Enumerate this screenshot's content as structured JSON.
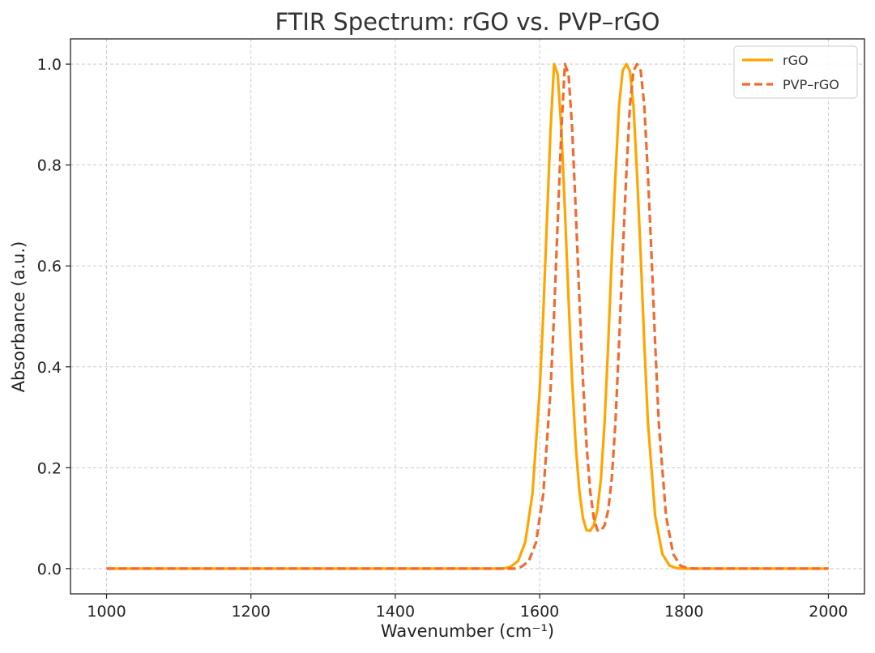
{
  "chart_data": {
    "type": "line",
    "title": "FTIR Spectrum: rGO vs. PVP–rGO",
    "xlabel": "Wavenumber (cm⁻¹)",
    "ylabel": "Absorbance (a.u.)",
    "xlim": [
      950,
      2050
    ],
    "ylim": [
      -0.05,
      1.05
    ],
    "xticks": [
      1000,
      1200,
      1400,
      1600,
      1800,
      2000
    ],
    "yticks": [
      0.0,
      0.2,
      0.4,
      0.6,
      0.8,
      1.0
    ],
    "xtick_labels": [
      "1000",
      "1200",
      "1400",
      "1600",
      "1800",
      "2000"
    ],
    "ytick_labels": [
      "0.0",
      "0.2",
      "0.4",
      "0.6",
      "0.8",
      "1.0"
    ],
    "grid": true,
    "legend_position": "top-right",
    "series": [
      {
        "name": "rGO",
        "color": "#FFA500",
        "style": "solid",
        "x": [
          1000,
          1200,
          1400,
          1500,
          1550,
          1560,
          1570,
          1580,
          1590,
          1600,
          1605,
          1610,
          1615,
          1620,
          1625,
          1630,
          1635,
          1640,
          1645,
          1650,
          1655,
          1660,
          1665,
          1670,
          1675,
          1680,
          1685,
          1690,
          1695,
          1700,
          1705,
          1710,
          1715,
          1720,
          1725,
          1730,
          1735,
          1740,
          1745,
          1750,
          1760,
          1770,
          1780,
          1790,
          1800,
          1850,
          1900,
          2000
        ],
        "y": [
          0,
          0,
          0,
          0,
          0,
          0.004,
          0.015,
          0.052,
          0.148,
          0.352,
          0.505,
          0.687,
          0.867,
          1.0,
          0.98,
          0.873,
          0.71,
          0.535,
          0.373,
          0.244,
          0.154,
          0.1,
          0.076,
          0.075,
          0.086,
          0.116,
          0.18,
          0.29,
          0.446,
          0.621,
          0.78,
          0.917,
          0.987,
          1.0,
          0.987,
          0.917,
          0.78,
          0.621,
          0.446,
          0.29,
          0.105,
          0.029,
          0.006,
          0.001,
          0,
          0,
          0,
          0
        ]
      },
      {
        "name": "PVP–rGO",
        "color": "#F26B2E",
        "style": "dashed",
        "x": [
          1000,
          1200,
          1400,
          1500,
          1565,
          1575,
          1585,
          1595,
          1605,
          1615,
          1620,
          1625,
          1630,
          1635,
          1640,
          1645,
          1650,
          1655,
          1660,
          1665,
          1670,
          1675,
          1680,
          1685,
          1690,
          1695,
          1700,
          1705,
          1710,
          1715,
          1720,
          1725,
          1730,
          1735,
          1740,
          1745,
          1750,
          1755,
          1760,
          1765,
          1775,
          1785,
          1795,
          1805,
          1815,
          1850,
          1900,
          2000
        ],
        "y": [
          0,
          0,
          0,
          0,
          0,
          0.004,
          0.015,
          0.052,
          0.148,
          0.352,
          0.505,
          0.687,
          0.867,
          1.0,
          0.98,
          0.873,
          0.71,
          0.535,
          0.373,
          0.244,
          0.154,
          0.1,
          0.076,
          0.075,
          0.086,
          0.116,
          0.18,
          0.29,
          0.446,
          0.621,
          0.78,
          0.917,
          0.987,
          1.0,
          0.987,
          0.917,
          0.78,
          0.621,
          0.446,
          0.29,
          0.105,
          0.029,
          0.006,
          0.001,
          0,
          0,
          0,
          0
        ]
      }
    ]
  }
}
